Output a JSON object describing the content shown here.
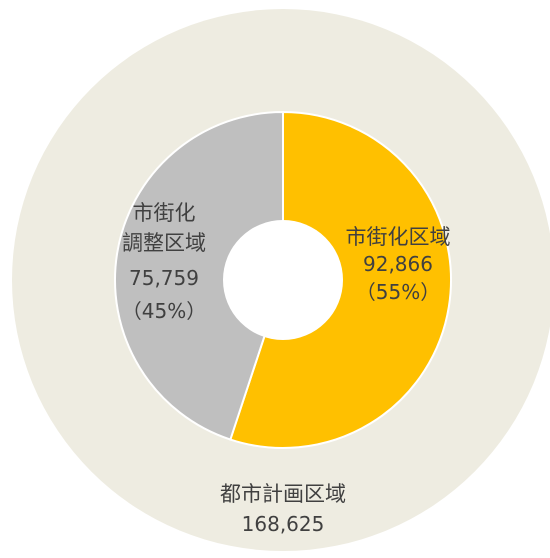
{
  "chart_data": {
    "type": "pie",
    "outer_ring": {
      "name": "都市計画区域",
      "value": 168625,
      "value_label": "168,625",
      "color": "#EEECE1"
    },
    "slices": [
      {
        "name": "市街化区域",
        "name_lines": [
          "市街化区域"
        ],
        "value": 92866,
        "value_label": "92,866",
        "percent_label": "（55%）",
        "color": "#FFC000"
      },
      {
        "name": "市街化調整区域",
        "name_lines": [
          "市街化",
          "調整区域"
        ],
        "value": 75759,
        "value_label": "75,759",
        "percent_label": "（45%）",
        "color": "#BFBFBF"
      }
    ],
    "text_color": "#404040",
    "slice_border_color": "#FFFFFF",
    "center_color": "#FFFFFF"
  }
}
